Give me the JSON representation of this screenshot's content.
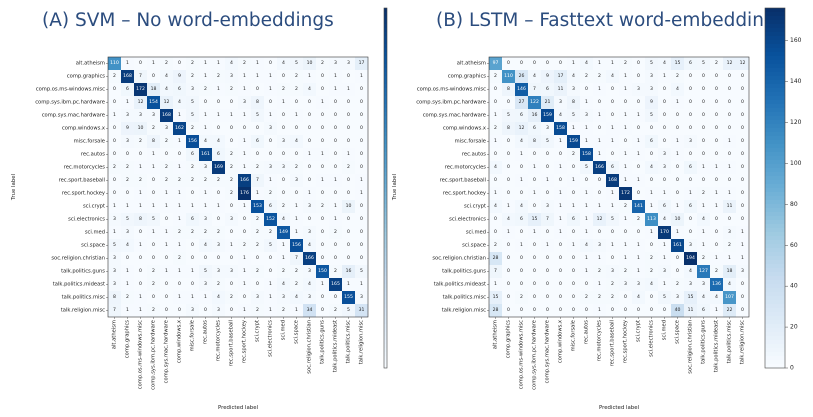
{
  "chart_data": [
    {
      "type": "heatmap",
      "title": "(A) SVM – No word-embeddings",
      "xlabel": "Predicted label",
      "ylabel": "True label",
      "colormap": "Blues",
      "categories": [
        "alt.atheism",
        "comp.graphics",
        "comp.os.ms-windows.misc",
        "comp.sys.ibm.pc.hardware",
        "comp.sys.mac.hardware",
        "comp.windows.x",
        "misc.forsale",
        "rec.autos",
        "rec.motorcycles",
        "rec.sport.baseball",
        "rec.sport.hockey",
        "sci.crypt",
        "sci.electronics",
        "sci.med",
        "sci.space",
        "soc.religion.christian",
        "talk.politics.guns",
        "talk.politics.mideast",
        "talk.politics.misc",
        "talk.religion.misc"
      ],
      "matrix": [
        [
          110,
          1,
          0,
          1,
          2,
          0,
          2,
          1,
          1,
          4,
          2,
          1,
          0,
          4,
          5,
          10,
          2,
          3,
          3,
          17
        ],
        [
          2,
          168,
          7,
          0,
          4,
          9,
          2,
          1,
          2,
          3,
          1,
          1,
          1,
          0,
          2,
          1,
          0,
          1,
          0,
          1
        ],
        [
          0,
          6,
          172,
          18,
          4,
          6,
          3,
          2,
          1,
          2,
          1,
          0,
          1,
          2,
          2,
          4,
          0,
          1,
          1,
          0
        ],
        [
          0,
          1,
          12,
          154,
          12,
          4,
          5,
          0,
          0,
          0,
          3,
          8,
          0,
          1,
          0,
          0,
          1,
          0,
          0,
          0
        ],
        [
          1,
          3,
          3,
          3,
          168,
          1,
          5,
          1,
          1,
          1,
          1,
          5,
          1,
          0,
          1,
          0,
          0,
          0,
          0,
          0
        ],
        [
          0,
          9,
          10,
          2,
          3,
          162,
          2,
          1,
          0,
          0,
          0,
          0,
          3,
          0,
          0,
          0,
          0,
          0,
          0,
          0
        ],
        [
          0,
          3,
          2,
          8,
          2,
          1,
          156,
          4,
          4,
          0,
          1,
          6,
          0,
          3,
          4,
          0,
          0,
          0,
          0,
          0
        ],
        [
          0,
          0,
          0,
          1,
          0,
          0,
          6,
          161,
          6,
          2,
          1,
          0,
          0,
          0,
          0,
          1,
          1,
          0,
          1,
          0
        ],
        [
          2,
          2,
          1,
          1,
          2,
          1,
          2,
          3,
          169,
          2,
          1,
          2,
          3,
          3,
          2,
          0,
          0,
          0,
          2,
          0
        ],
        [
          0,
          2,
          2,
          0,
          2,
          2,
          2,
          2,
          2,
          2,
          166,
          7,
          1,
          0,
          3,
          0,
          1,
          1,
          0,
          1
        ],
        [
          0,
          0,
          1,
          0,
          1,
          1,
          0,
          1,
          0,
          2,
          176,
          1,
          2,
          0,
          0,
          1,
          0,
          0,
          0,
          1
        ],
        [
          1,
          1,
          1,
          1,
          1,
          1,
          1,
          1,
          1,
          0,
          1,
          153,
          6,
          2,
          1,
          3,
          2,
          1,
          10,
          0
        ],
        [
          3,
          5,
          8,
          5,
          0,
          1,
          6,
          3,
          0,
          3,
          0,
          2,
          152,
          4,
          1,
          0,
          0,
          1,
          0,
          0
        ],
        [
          1,
          3,
          0,
          1,
          1,
          2,
          2,
          2,
          2,
          0,
          0,
          2,
          2,
          149,
          1,
          3,
          0,
          2,
          0,
          0
        ],
        [
          5,
          4,
          1,
          0,
          1,
          1,
          0,
          4,
          3,
          1,
          2,
          2,
          5,
          1,
          156,
          4,
          0,
          0,
          0,
          0
        ],
        [
          3,
          0,
          0,
          0,
          0,
          2,
          0,
          0,
          0,
          0,
          1,
          0,
          0,
          1,
          7,
          166,
          0,
          0,
          0,
          0
        ],
        [
          3,
          1,
          0,
          2,
          1,
          1,
          1,
          5,
          3,
          3,
          1,
          2,
          0,
          2,
          2,
          3,
          150,
          2,
          16,
          5
        ],
        [
          3,
          1,
          0,
          2,
          0,
          0,
          0,
          3,
          2,
          0,
          1,
          0,
          1,
          4,
          2,
          4,
          1,
          165,
          1,
          1
        ],
        [
          8,
          2,
          1,
          0,
          0,
          1,
          1,
          1,
          4,
          2,
          0,
          3,
          1,
          3,
          4,
          3,
          0,
          0,
          155,
          3
        ],
        [
          7,
          1,
          1,
          2,
          0,
          0,
          3,
          0,
          3,
          0,
          1,
          2,
          1,
          2,
          1,
          34,
          0,
          2,
          5,
          31
        ]
      ]
    },
    {
      "type": "heatmap",
      "title": "(B) LSTM – Fasttext word-embeddings",
      "xlabel": "Predicted label",
      "ylabel": "True label",
      "colormap": "Blues",
      "colorbar_ticks": [
        0,
        20,
        40,
        60,
        80,
        100,
        120,
        140,
        160
      ],
      "categories": [
        "alt.atheism",
        "comp.graphics",
        "comp.os.ms-windows.misc",
        "comp.sys.ibm.pc.hardware",
        "comp.sys.mac.hardware",
        "comp.windows.x",
        "misc.forsale",
        "rec.autos",
        "rec.motorcycles",
        "rec.sport.baseball",
        "rec.sport.hockey",
        "sci.crypt",
        "sci.electronics",
        "sci.med",
        "sci.space",
        "soc.religion.christian",
        "talk.politics.guns",
        "talk.politics.mideast",
        "talk.politics.misc",
        "talk.religion.misc"
      ],
      "matrix": [
        [
          97,
          0,
          0,
          0,
          0,
          0,
          1,
          4,
          1,
          1,
          2,
          0,
          5,
          4,
          15,
          6,
          5,
          2,
          12,
          12
        ],
        [
          2,
          110,
          26,
          4,
          9,
          17,
          4,
          2,
          2,
          4,
          1,
          0,
          3,
          1,
          2,
          0,
          0,
          0,
          0,
          0
        ],
        [
          0,
          8,
          146,
          7,
          6,
          11,
          3,
          0,
          1,
          0,
          1,
          3,
          3,
          0,
          4,
          0,
          0,
          0,
          0,
          0
        ],
        [
          0,
          0,
          27,
          122,
          21,
          3,
          8,
          1,
          0,
          0,
          0,
          0,
          9,
          0,
          1,
          0,
          0,
          0,
          0,
          0
        ],
        [
          1,
          5,
          6,
          16,
          159,
          4,
          5,
          3,
          1,
          0,
          1,
          1,
          5,
          0,
          0,
          0,
          0,
          0,
          0,
          0
        ],
        [
          2,
          8,
          12,
          6,
          3,
          158,
          1,
          1,
          0,
          1,
          1,
          0,
          0,
          0,
          0,
          0,
          0,
          0,
          0,
          0
        ],
        [
          1,
          0,
          4,
          8,
          5,
          1,
          159,
          1,
          1,
          1,
          0,
          1,
          6,
          0,
          1,
          3,
          0,
          0,
          1,
          0
        ],
        [
          0,
          0,
          1,
          0,
          0,
          0,
          2,
          158,
          1,
          0,
          1,
          1,
          0,
          3,
          1,
          0,
          0,
          0,
          0,
          0
        ],
        [
          4,
          0,
          0,
          1,
          0,
          1,
          0,
          5,
          166,
          6,
          1,
          0,
          4,
          3,
          0,
          6,
          1,
          1,
          1,
          0
        ],
        [
          0,
          0,
          1,
          0,
          1,
          0,
          1,
          0,
          0,
          168,
          1,
          1,
          0,
          0,
          0,
          0,
          0,
          0,
          0,
          0
        ],
        [
          1,
          0,
          0,
          1,
          0,
          1,
          0,
          1,
          0,
          1,
          172,
          0,
          1,
          1,
          0,
          1,
          2,
          1,
          1,
          0
        ],
        [
          4,
          1,
          4,
          0,
          3,
          1,
          1,
          1,
          1,
          1,
          2,
          141,
          1,
          6,
          1,
          6,
          1,
          1,
          11,
          0
        ],
        [
          0,
          4,
          6,
          15,
          7,
          1,
          6,
          1,
          12,
          5,
          1,
          2,
          113,
          4,
          10,
          0,
          4,
          0,
          0,
          0
        ],
        [
          0,
          1,
          0,
          1,
          0,
          1,
          0,
          1,
          0,
          0,
          0,
          0,
          1,
          170,
          1,
          0,
          1,
          0,
          3,
          1
        ],
        [
          2,
          0,
          1,
          0,
          1,
          0,
          1,
          4,
          3,
          1,
          1,
          1,
          0,
          1,
          161,
          3,
          1,
          0,
          2,
          1
        ],
        [
          28,
          0,
          0,
          0,
          0,
          0,
          0,
          1,
          1,
          0,
          1,
          1,
          2,
          1,
          0,
          194,
          2,
          1,
          1,
          1
        ],
        [
          7,
          0,
          0,
          0,
          0,
          0,
          0,
          1,
          2,
          3,
          2,
          1,
          2,
          3,
          0,
          4,
          127,
          2,
          18,
          3
        ],
        [
          1,
          0,
          0,
          0,
          0,
          0,
          0,
          0,
          1,
          2,
          3,
          3,
          4,
          1,
          2,
          3,
          3,
          136,
          4,
          0
        ],
        [
          15,
          0,
          2,
          0,
          0,
          0,
          0,
          2,
          2,
          2,
          0,
          4,
          0,
          5,
          3,
          15,
          4,
          4,
          107,
          0
        ],
        [
          28,
          0,
          0,
          0,
          0,
          0,
          0,
          0,
          1,
          0,
          0,
          0,
          0,
          0,
          40,
          11,
          6,
          1,
          22,
          0
        ]
      ]
    }
  ]
}
